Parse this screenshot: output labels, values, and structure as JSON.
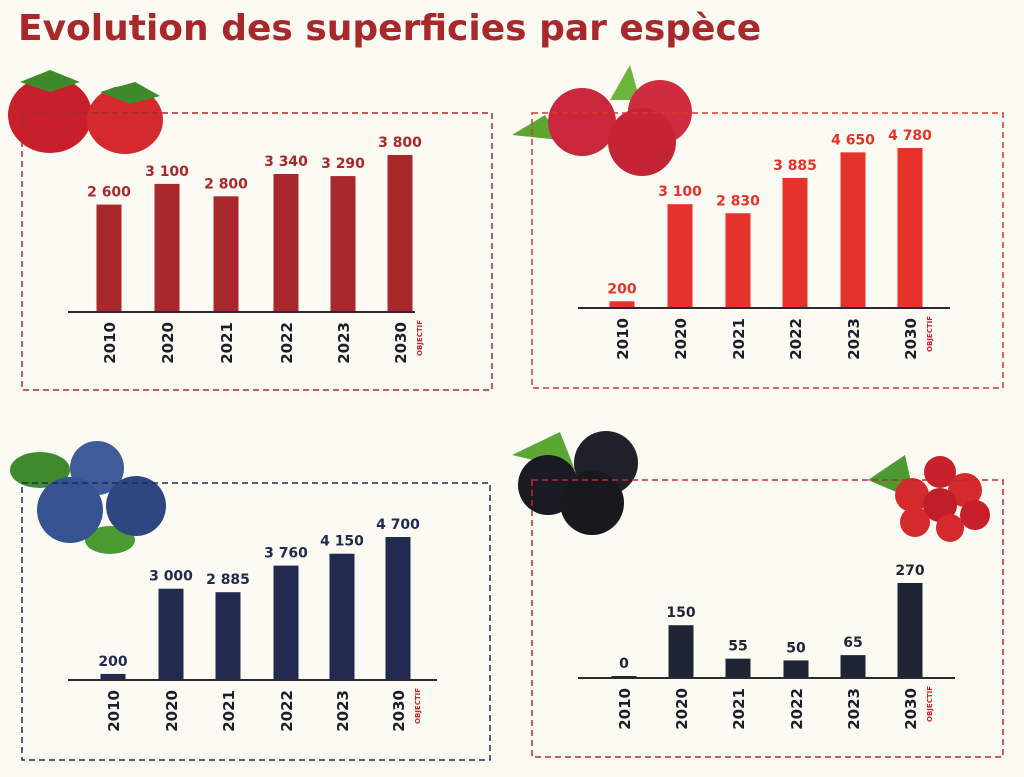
{
  "title": "Evolution des superficies par espèce",
  "chart_data": [
    {
      "type": "bar",
      "categories": [
        "2010",
        "2020",
        "2021",
        "2022",
        "2023",
        "2030"
      ],
      "values": [
        2600,
        3100,
        2800,
        3340,
        3290,
        3800
      ],
      "value_labels": [
        "2 600",
        "3 100",
        "2 800",
        "3 340",
        "3 290",
        "3 800"
      ],
      "annotation": "OBJECTIF",
      "color": "#a8282c",
      "label_color": "#a8282c"
    },
    {
      "type": "bar",
      "categories": [
        "2010",
        "2020",
        "2021",
        "2022",
        "2023",
        "2030"
      ],
      "values": [
        200,
        3100,
        2830,
        3885,
        4650,
        4780
      ],
      "value_labels": [
        "200",
        "3 100",
        "2 830",
        "3 885",
        "4 650",
        "4 780"
      ],
      "annotation": "OBJECTIF",
      "color": "#e5322a",
      "label_color": "#e5322a"
    },
    {
      "type": "bar",
      "categories": [
        "2010",
        "2020",
        "2021",
        "2022",
        "2023",
        "2030"
      ],
      "values": [
        200,
        3000,
        2885,
        3760,
        4150,
        4700
      ],
      "value_labels": [
        "200",
        "3 000",
        "2 885",
        "3 760",
        "4 150",
        "4 700"
      ],
      "annotation": "OBJECTIF",
      "color": "#232a50",
      "label_color": "#232a50"
    },
    {
      "type": "bar",
      "categories": [
        "2010",
        "2020",
        "2021",
        "2022",
        "2023",
        "2030"
      ],
      "values": [
        0,
        150,
        55,
        50,
        65,
        270
      ],
      "value_labels": [
        "0",
        "150",
        "55",
        "50",
        "65",
        "270"
      ],
      "annotation": "OBJECTIF",
      "color": "#1f2535",
      "label_color": "#1f2535"
    }
  ]
}
